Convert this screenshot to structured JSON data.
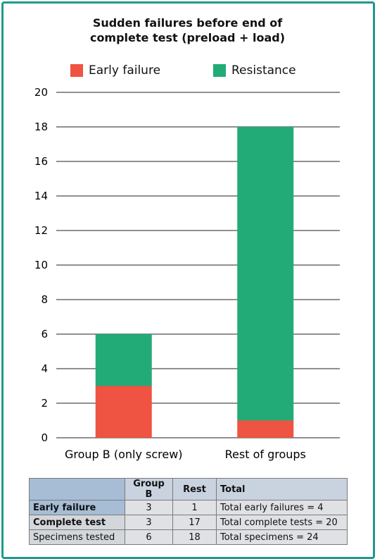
{
  "chart_data": {
    "type": "bar",
    "stacked": true,
    "title_lines": [
      "Sudden failures before end of",
      "complete test (preload + load)"
    ],
    "categories": [
      "Group B (only screw)",
      "Rest of groups"
    ],
    "series": [
      {
        "name": "Early failure",
        "values": [
          3,
          1
        ],
        "color": "#ef5341"
      },
      {
        "name": "Resistance",
        "values": [
          3,
          17
        ],
        "color": "#22ab76"
      }
    ],
    "ylim": [
      0,
      20
    ],
    "yticks": [
      "0",
      "2",
      "4",
      "6",
      "8",
      "10",
      "12",
      "14",
      "16",
      "18",
      "20"
    ],
    "grid": true,
    "legend_position": "top"
  },
  "table": {
    "header": [
      "",
      "Group B",
      "Rest",
      "Total"
    ],
    "rows": [
      {
        "label": "Early failure",
        "b": "3",
        "rest": "1",
        "total": "Total early failures = 4"
      },
      {
        "label": "Complete test",
        "b": "3",
        "rest": "17",
        "total": "Total complete tests = 20"
      },
      {
        "label": "Specimens tested",
        "b": "6",
        "rest": "18",
        "total": "Total specimens = 24"
      }
    ]
  },
  "colors": {
    "frame": "#1f9a8c"
  }
}
